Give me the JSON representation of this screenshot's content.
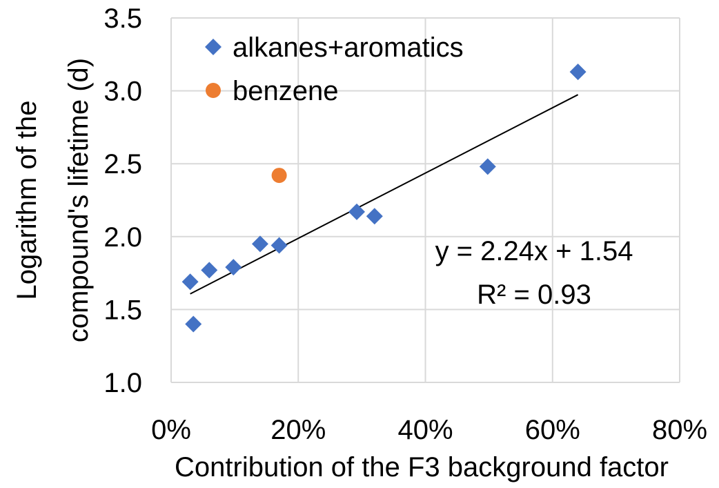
{
  "chart_data": {
    "type": "scatter",
    "xlabel": "Contribution of the F3 background factor",
    "ylabel_lines": [
      "Logarithm of the",
      "compound's lifetime (d)"
    ],
    "xlim": [
      0,
      0.8
    ],
    "ylim": [
      1.0,
      3.5
    ],
    "x_ticks": [
      {
        "value": 0.0,
        "label": "0%"
      },
      {
        "value": 0.2,
        "label": "20%"
      },
      {
        "value": 0.4,
        "label": "40%"
      },
      {
        "value": 0.6,
        "label": "60%"
      },
      {
        "value": 0.8,
        "label": "80%"
      }
    ],
    "y_ticks": [
      {
        "value": 1.0,
        "label": "1.0"
      },
      {
        "value": 1.5,
        "label": "1.5"
      },
      {
        "value": 2.0,
        "label": "2.0"
      },
      {
        "value": 2.5,
        "label": "2.5"
      },
      {
        "value": 3.0,
        "label": "3.0"
      },
      {
        "value": 3.5,
        "label": "3.5"
      }
    ],
    "grid": true,
    "legend_position": "top-left",
    "series": [
      {
        "name": "alkanes+aromatics",
        "marker": "diamond",
        "color": "#4472C4",
        "points": [
          {
            "x": 0.03,
            "y": 1.69
          },
          {
            "x": 0.035,
            "y": 1.4
          },
          {
            "x": 0.06,
            "y": 1.77
          },
          {
            "x": 0.098,
            "y": 1.79
          },
          {
            "x": 0.14,
            "y": 1.95
          },
          {
            "x": 0.17,
            "y": 1.94
          },
          {
            "x": 0.292,
            "y": 2.17
          },
          {
            "x": 0.32,
            "y": 2.14
          },
          {
            "x": 0.498,
            "y": 2.48
          },
          {
            "x": 0.64,
            "y": 3.13
          }
        ]
      },
      {
        "name": "benzene",
        "marker": "circle",
        "color": "#ED7D31",
        "points": [
          {
            "x": 0.17,
            "y": 2.42
          }
        ]
      }
    ],
    "trendline": {
      "slope": 2.24,
      "intercept": 1.54,
      "x_range": [
        0.03,
        0.64
      ],
      "color": "#000000"
    },
    "annotations": {
      "equation": "y = 2.24x + 1.54",
      "r_squared": "R² = 0.93"
    }
  }
}
